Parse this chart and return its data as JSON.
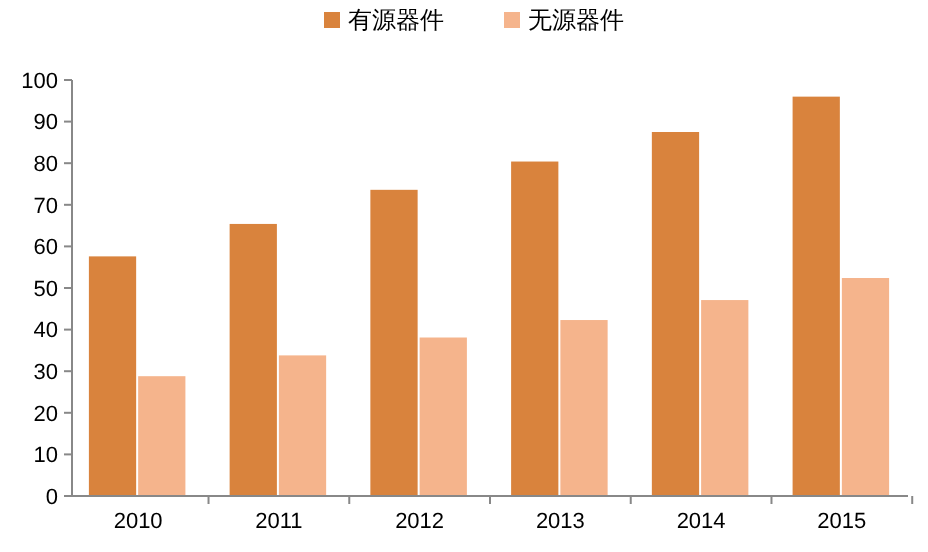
{
  "chart_data": {
    "type": "bar",
    "categories": [
      "2010",
      "2011",
      "2012",
      "2013",
      "2014",
      "2015"
    ],
    "series": [
      {
        "name": "有源器件",
        "color": "#d9833d",
        "values": [
          57.6,
          65.4,
          73.6,
          80.4,
          87.5,
          96
        ]
      },
      {
        "name": "无源器件",
        "color": "#f5b48c",
        "values": [
          28.8,
          33.8,
          38.1,
          42.3,
          47.1,
          52.4
        ]
      }
    ],
    "ylim": [
      0,
      100
    ],
    "yticks": [
      0,
      10,
      20,
      30,
      40,
      50,
      60,
      70,
      80,
      90,
      100
    ],
    "grid": false,
    "legend": "top"
  }
}
